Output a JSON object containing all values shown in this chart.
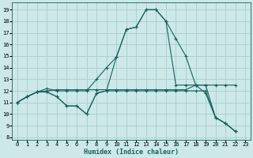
{
  "bg_color": "#cce8e8",
  "grid_color": "#aacccc",
  "line_color": "#1a6060",
  "xlabel": "Humidex (Indice chaleur)",
  "xlim": [
    -0.5,
    23.5
  ],
  "ylim": [
    7.8,
    19.6
  ],
  "xticks": [
    0,
    1,
    2,
    3,
    4,
    5,
    6,
    7,
    8,
    9,
    10,
    11,
    12,
    13,
    14,
    15,
    16,
    17,
    18,
    19,
    20,
    21,
    22,
    23
  ],
  "yticks": [
    8,
    9,
    10,
    11,
    12,
    13,
    14,
    15,
    16,
    17,
    18,
    19
  ],
  "series": [
    {
      "x": [
        0,
        1,
        2,
        3,
        4,
        5,
        6,
        7,
        8,
        9,
        10,
        11,
        12,
        13,
        14,
        15,
        16,
        17,
        18,
        19,
        20,
        21,
        22
      ],
      "y": [
        11.0,
        11.5,
        11.9,
        11.9,
        11.5,
        10.7,
        10.7,
        10.0,
        11.8,
        12.0,
        14.9,
        17.3,
        17.5,
        19.0,
        19.0,
        18.0,
        16.5,
        15.0,
        12.5,
        11.8,
        9.7,
        9.2,
        8.5
      ]
    },
    {
      "x": [
        0,
        1,
        2,
        3,
        4,
        5,
        6,
        7,
        8,
        9,
        10,
        11,
        12,
        13,
        14,
        15,
        16,
        17,
        18,
        19,
        20,
        21,
        22
      ],
      "y": [
        11.0,
        11.5,
        11.9,
        12.0,
        12.1,
        12.1,
        12.1,
        12.1,
        12.1,
        12.1,
        12.1,
        12.1,
        12.1,
        12.1,
        12.1,
        12.1,
        12.1,
        12.1,
        12.5,
        12.5,
        12.5,
        12.5,
        12.5
      ]
    },
    {
      "x": [
        0,
        1,
        2,
        3,
        4,
        5,
        6,
        7,
        8,
        9,
        10,
        11,
        12,
        13,
        14,
        15,
        16,
        17,
        18,
        19,
        20,
        21,
        22
      ],
      "y": [
        11.0,
        11.5,
        11.9,
        12.2,
        12.0,
        12.0,
        12.0,
        12.0,
        13.0,
        14.0,
        14.9,
        17.3,
        17.5,
        19.0,
        19.0,
        18.0,
        12.5,
        12.5,
        12.5,
        12.5,
        9.7,
        9.2,
        8.5
      ]
    },
    {
      "x": [
        0,
        1,
        2,
        3,
        4,
        5,
        6,
        7,
        8,
        9,
        10,
        11,
        12,
        13,
        14,
        15,
        16,
        17,
        18,
        19,
        20,
        21,
        22
      ],
      "y": [
        11.0,
        11.5,
        11.9,
        11.9,
        11.5,
        10.7,
        10.7,
        10.0,
        11.8,
        12.0,
        12.0,
        12.0,
        12.0,
        12.0,
        12.0,
        12.0,
        12.0,
        12.0,
        12.0,
        12.0,
        9.7,
        9.2,
        8.5
      ]
    }
  ],
  "tick_fontsize": 5.0,
  "xlabel_fontsize": 6.0,
  "linewidth": 0.8,
  "markersize": 2.5,
  "markeredgewidth": 0.8
}
